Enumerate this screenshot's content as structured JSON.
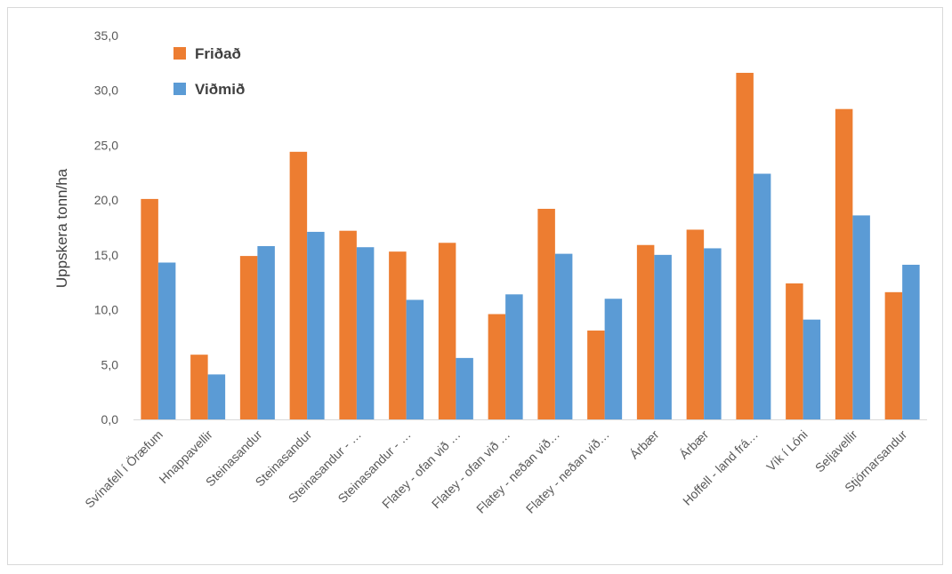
{
  "chart_data": {
    "type": "bar",
    "title": "",
    "xlabel": "",
    "ylabel": "Uppskera tonn/ha",
    "ylim": [
      0,
      35
    ],
    "yticks": [
      "0,0",
      "5,0",
      "10,0",
      "15,0",
      "20,0",
      "25,0",
      "30,0",
      "35,0"
    ],
    "grid": false,
    "legend_position": "top-left",
    "categories": [
      "Svínafell í Öræfum",
      "Hnappavellir",
      "Steinasandur",
      "Steinasandur",
      "Steinasandur - …",
      "Steinasandur - …",
      "Flatey - ofan við …",
      "Flatey - ofan við …",
      "Flatey - neðan við…",
      "Flatey - neðan við…",
      "Árbær",
      "Árbær",
      "Hoffell - land frá…",
      "Vík í Lóni",
      "Seljavellir",
      "Stjórnarsandur"
    ],
    "series": [
      {
        "name": "Friðað",
        "color": "#ed7d31",
        "values": [
          20.1,
          5.9,
          14.9,
          24.4,
          17.2,
          15.3,
          16.1,
          9.6,
          19.2,
          8.1,
          15.9,
          17.3,
          31.6,
          12.4,
          28.3,
          11.6
        ]
      },
      {
        "name": "Viðmið",
        "color": "#5b9bd5",
        "values": [
          14.3,
          4.1,
          15.8,
          17.1,
          15.7,
          10.9,
          5.6,
          11.4,
          15.1,
          11.0,
          15.0,
          15.6,
          22.4,
          9.1,
          18.6,
          14.1
        ]
      }
    ]
  }
}
